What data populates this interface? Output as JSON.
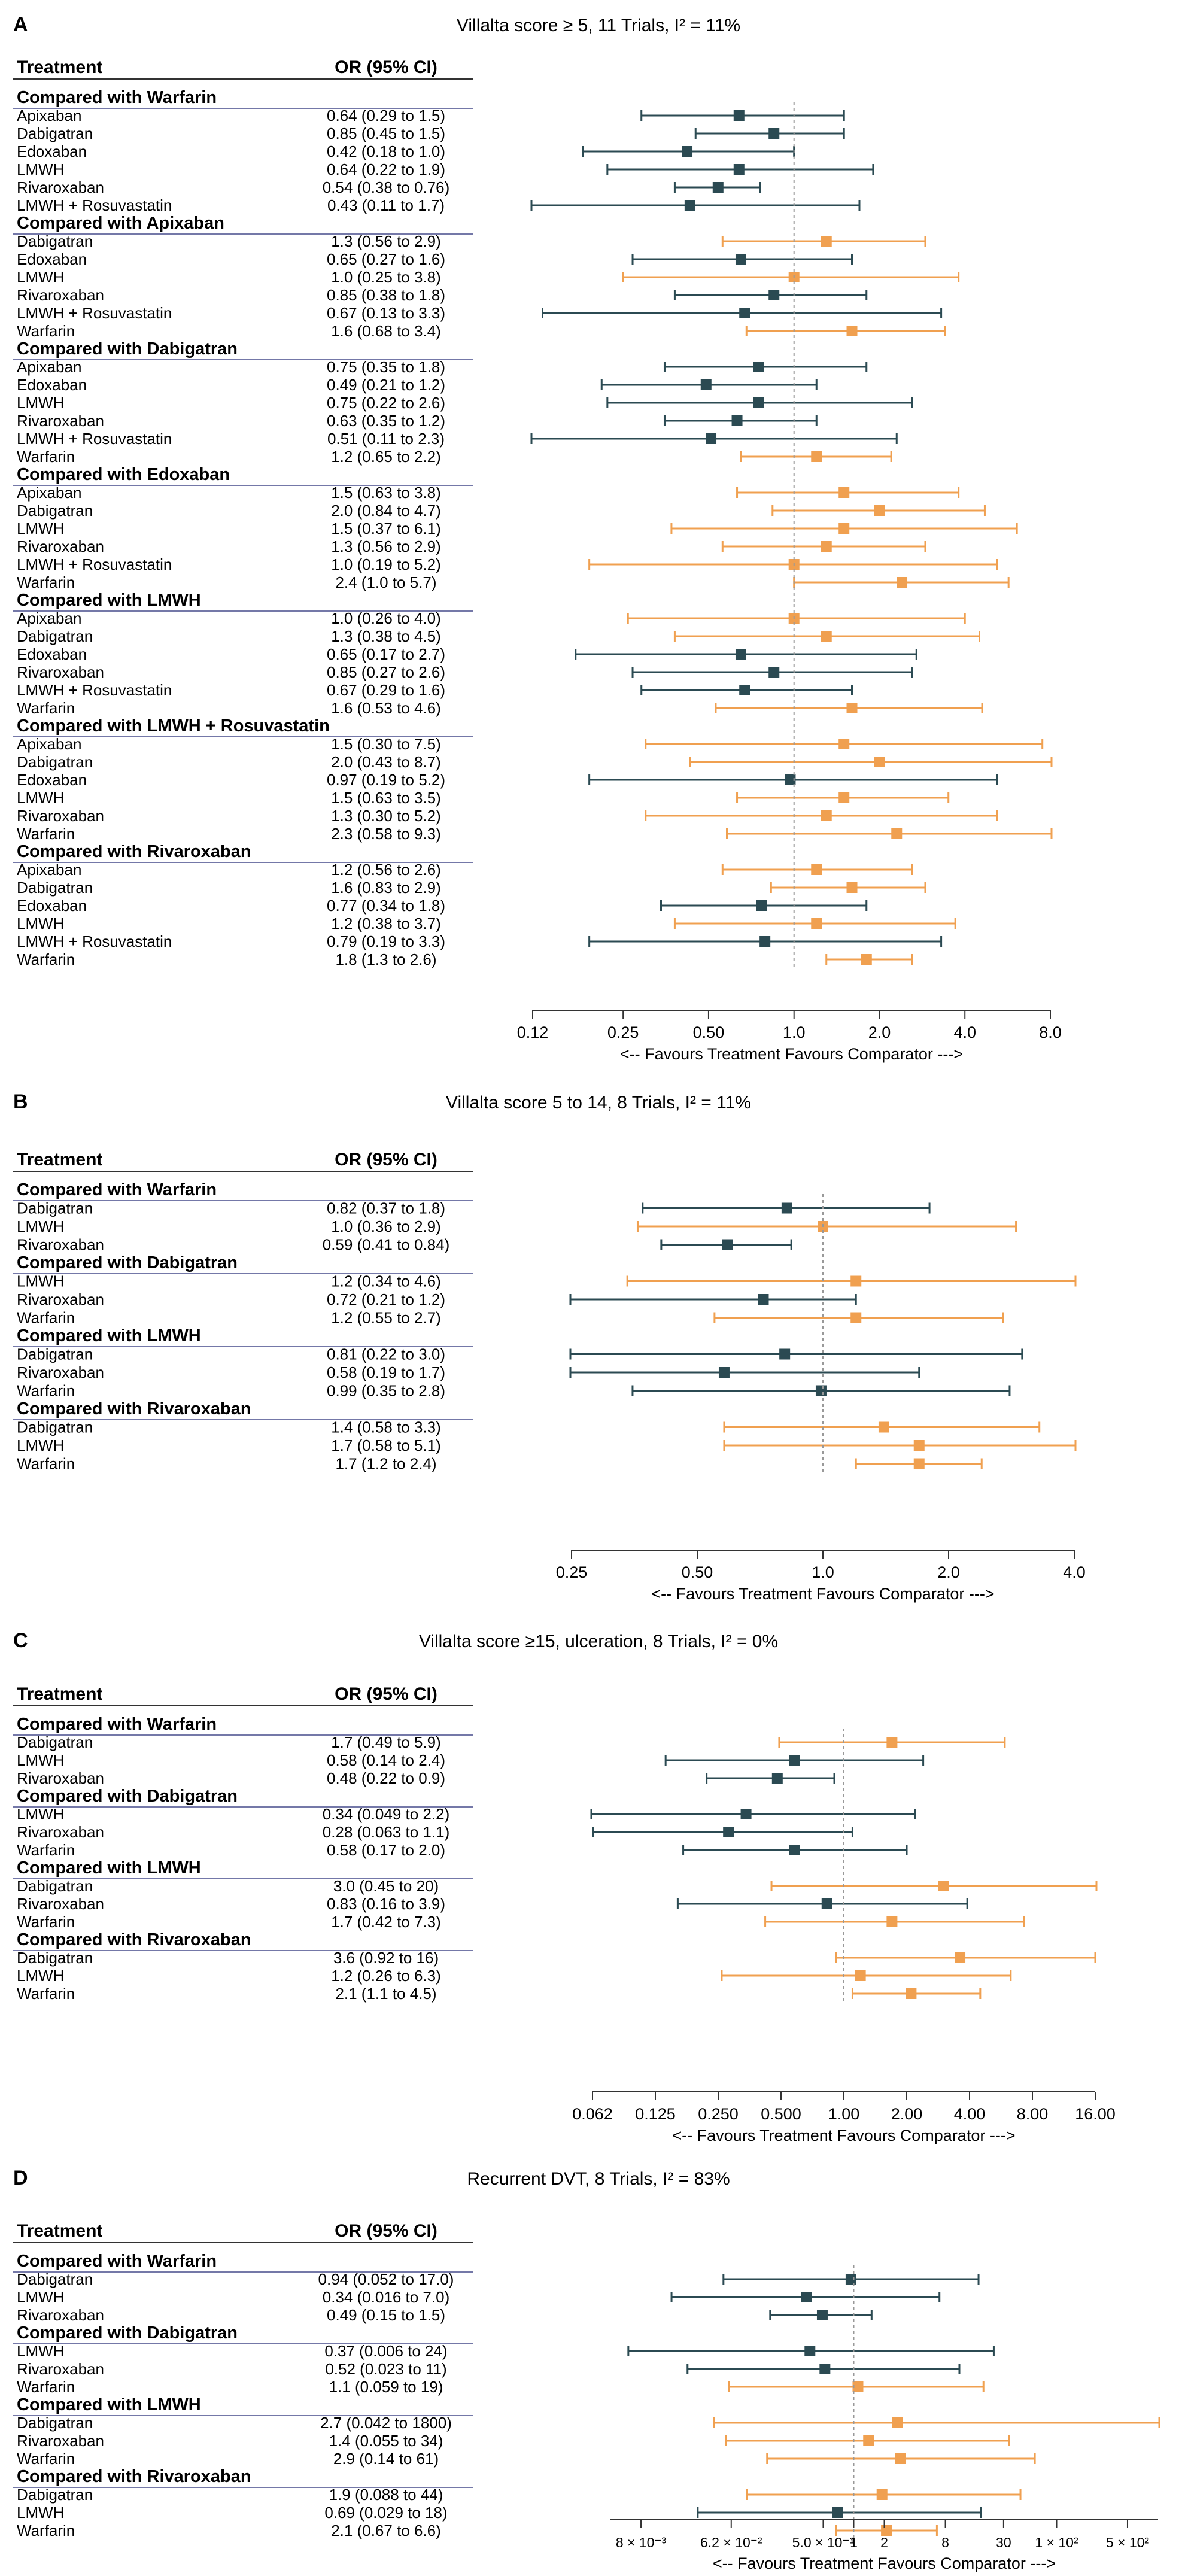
{
  "colors": {
    "below_one": "#2b4a52",
    "above_one": "#f0a050",
    "rule": "#7478a8",
    "axis": "#333333",
    "ref_line": "#999999"
  },
  "headers": {
    "treatment": "Treatment",
    "or_ci": "OR (95% CI)"
  },
  "axis_caption": "<-- Favours  Treatment  Favours Comparator --->",
  "chart_data": [
    {
      "type": "forest",
      "panel_label": "A",
      "title": "Villalta score ≥ 5, 11 Trials, I² = 11%",
      "x_scale": "log2",
      "xlim": [
        0.12,
        8.0
      ],
      "ticks": [
        0.12,
        0.25,
        0.5,
        1.0,
        2.0,
        4.0,
        8.0
      ],
      "tick_labels": [
        "0.12",
        "0.25",
        "0.50",
        "1.0",
        "2.0",
        "4.0",
        "8.0"
      ],
      "groups": [
        {
          "title": "Compared with Warfarin",
          "rows": [
            {
              "label": "Apixaban",
              "ci_text": "0.64 (0.29 to 1.5)",
              "or": 0.64,
              "lo": 0.29,
              "hi": 1.5
            },
            {
              "label": "Dabigatran",
              "ci_text": "0.85 (0.45 to 1.5)",
              "or": 0.85,
              "lo": 0.45,
              "hi": 1.5
            },
            {
              "label": "Edoxaban",
              "ci_text": "0.42 (0.18 to 1.0)",
              "or": 0.42,
              "lo": 0.18,
              "hi": 1.0
            },
            {
              "label": "LMWH",
              "ci_text": "0.64 (0.22 to 1.9)",
              "or": 0.64,
              "lo": 0.22,
              "hi": 1.9
            },
            {
              "label": "Rivaroxaban",
              "ci_text": "0.54 (0.38 to 0.76)",
              "or": 0.54,
              "lo": 0.38,
              "hi": 0.76
            },
            {
              "label": "LMWH + Rosuvastatin",
              "ci_text": "0.43 (0.11 to 1.7)",
              "or": 0.43,
              "lo": 0.11,
              "hi": 1.7
            }
          ]
        },
        {
          "title": "Compared with Apixaban",
          "rows": [
            {
              "label": "Dabigatran",
              "ci_text": "1.3 (0.56 to 2.9)",
              "or": 1.3,
              "lo": 0.56,
              "hi": 2.9
            },
            {
              "label": "Edoxaban",
              "ci_text": "0.65 (0.27 to 1.6)",
              "or": 0.65,
              "lo": 0.27,
              "hi": 1.6
            },
            {
              "label": "LMWH",
              "ci_text": "1.0 (0.25 to 3.8)",
              "or": 1.0,
              "lo": 0.25,
              "hi": 3.8
            },
            {
              "label": "Rivaroxaban",
              "ci_text": "0.85 (0.38 to 1.8)",
              "or": 0.85,
              "lo": 0.38,
              "hi": 1.8
            },
            {
              "label": "LMWH + Rosuvastatin",
              "ci_text": "0.67 (0.13 to 3.3)",
              "or": 0.67,
              "lo": 0.13,
              "hi": 3.3
            },
            {
              "label": "Warfarin",
              "ci_text": "1.6 (0.68 to 3.4)",
              "or": 1.6,
              "lo": 0.68,
              "hi": 3.4
            }
          ]
        },
        {
          "title": "Compared with Dabigatran",
          "rows": [
            {
              "label": "Apixaban",
              "ci_text": "0.75 (0.35 to 1.8)",
              "or": 0.75,
              "lo": 0.35,
              "hi": 1.8
            },
            {
              "label": "Edoxaban",
              "ci_text": "0.49 (0.21 to 1.2)",
              "or": 0.49,
              "lo": 0.21,
              "hi": 1.2
            },
            {
              "label": "LMWH",
              "ci_text": "0.75 (0.22 to 2.6)",
              "or": 0.75,
              "lo": 0.22,
              "hi": 2.6
            },
            {
              "label": "Rivaroxaban",
              "ci_text": "0.63 (0.35 to 1.2)",
              "or": 0.63,
              "lo": 0.35,
              "hi": 1.2
            },
            {
              "label": "LMWH + Rosuvastatin",
              "ci_text": "0.51 (0.11 to 2.3)",
              "or": 0.51,
              "lo": 0.11,
              "hi": 2.3
            },
            {
              "label": "Warfarin",
              "ci_text": "1.2 (0.65 to 2.2)",
              "or": 1.2,
              "lo": 0.65,
              "hi": 2.2
            }
          ]
        },
        {
          "title": "Compared with Edoxaban",
          "rows": [
            {
              "label": "Apixaban",
              "ci_text": "1.5 (0.63 to 3.8)",
              "or": 1.5,
              "lo": 0.63,
              "hi": 3.8
            },
            {
              "label": "Dabigatran",
              "ci_text": "2.0 (0.84 to 4.7)",
              "or": 2.0,
              "lo": 0.84,
              "hi": 4.7
            },
            {
              "label": "LMWH",
              "ci_text": "1.5 (0.37 to 6.1)",
              "or": 1.5,
              "lo": 0.37,
              "hi": 6.1
            },
            {
              "label": "Rivaroxaban",
              "ci_text": "1.3 (0.56 to 2.9)",
              "or": 1.3,
              "lo": 0.56,
              "hi": 2.9
            },
            {
              "label": "LMWH + Rosuvastatin",
              "ci_text": "1.0 (0.19 to 5.2)",
              "or": 1.0,
              "lo": 0.19,
              "hi": 5.2
            },
            {
              "label": "Warfarin",
              "ci_text": "2.4 (1.0 to 5.7)",
              "or": 2.4,
              "lo": 1.0,
              "hi": 5.7
            }
          ]
        },
        {
          "title": "Compared with LMWH",
          "rows": [
            {
              "label": "Apixaban",
              "ci_text": "1.0 (0.26 to 4.0)",
              "or": 1.0,
              "lo": 0.26,
              "hi": 4.0
            },
            {
              "label": "Dabigatran",
              "ci_text": "1.3 (0.38 to 4.5)",
              "or": 1.3,
              "lo": 0.38,
              "hi": 4.5
            },
            {
              "label": "Edoxaban",
              "ci_text": "0.65 (0.17 to 2.7)",
              "or": 0.65,
              "lo": 0.17,
              "hi": 2.7
            },
            {
              "label": "Rivaroxaban",
              "ci_text": "0.85 (0.27 to 2.6)",
              "or": 0.85,
              "lo": 0.27,
              "hi": 2.6
            },
            {
              "label": "LMWH + Rosuvastatin",
              "ci_text": "0.67 (0.29 to 1.6)",
              "or": 0.67,
              "lo": 0.29,
              "hi": 1.6
            },
            {
              "label": "Warfarin",
              "ci_text": "1.6 (0.53 to 4.6)",
              "or": 1.6,
              "lo": 0.53,
              "hi": 4.6
            }
          ]
        },
        {
          "title": "Compared with LMWH + Rosuvastatin",
          "rows": [
            {
              "label": "Apixaban",
              "ci_text": "1.5 (0.30 to 7.5)",
              "or": 1.5,
              "lo": 0.3,
              "hi": 7.5
            },
            {
              "label": "Dabigatran",
              "ci_text": "2.0 (0.43 to 8.7)",
              "or": 2.0,
              "lo": 0.43,
              "hi": 8.7
            },
            {
              "label": "Edoxaban",
              "ci_text": "0.97 (0.19 to 5.2)",
              "or": 0.97,
              "lo": 0.19,
              "hi": 5.2
            },
            {
              "label": "LMWH",
              "ci_text": "1.5 (0.63 to 3.5)",
              "or": 1.5,
              "lo": 0.63,
              "hi": 3.5
            },
            {
              "label": "Rivaroxaban",
              "ci_text": "1.3 (0.30 to 5.2)",
              "or": 1.3,
              "lo": 0.3,
              "hi": 5.2
            },
            {
              "label": "Warfarin",
              "ci_text": "2.3 (0.58 to 9.3)",
              "or": 2.3,
              "lo": 0.58,
              "hi": 9.3
            }
          ]
        },
        {
          "title": "Compared with Rivaroxaban",
          "rows": [
            {
              "label": "Apixaban",
              "ci_text": "1.2 (0.56 to 2.6)",
              "or": 1.2,
              "lo": 0.56,
              "hi": 2.6
            },
            {
              "label": "Dabigatran",
              "ci_text": "1.6 (0.83 to 2.9)",
              "or": 1.6,
              "lo": 0.83,
              "hi": 2.9
            },
            {
              "label": "Edoxaban",
              "ci_text": "0.77 (0.34 to 1.8)",
              "or": 0.77,
              "lo": 0.34,
              "hi": 1.8
            },
            {
              "label": "LMWH",
              "ci_text": "1.2 (0.38 to 3.7)",
              "or": 1.2,
              "lo": 0.38,
              "hi": 3.7
            },
            {
              "label": "LMWH + Rosuvastatin",
              "ci_text": "0.79 (0.19 to 3.3)",
              "or": 0.79,
              "lo": 0.19,
              "hi": 3.3
            },
            {
              "label": "Warfarin",
              "ci_text": "1.8 (1.3 to 2.6)",
              "or": 1.8,
              "lo": 1.3,
              "hi": 2.6
            }
          ]
        }
      ]
    },
    {
      "type": "forest",
      "panel_label": "B",
      "title": "Villalta score 5 to 14, 8 Trials, I² = 11%",
      "x_scale": "log2",
      "xlim": [
        0.25,
        4.0
      ],
      "ticks": [
        0.25,
        0.5,
        1.0,
        2.0,
        4.0
      ],
      "tick_labels": [
        "0.25",
        "0.50",
        "1.0",
        "2.0",
        "4.0"
      ],
      "groups": [
        {
          "title": "Compared with Warfarin",
          "rows": [
            {
              "label": "Dabigatran",
              "ci_text": "0.82 (0.37 to 1.8)",
              "or": 0.82,
              "lo": 0.37,
              "hi": 1.8
            },
            {
              "label": "LMWH",
              "ci_text": "1.0 (0.36 to 2.9)",
              "or": 1.0,
              "lo": 0.36,
              "hi": 2.9
            },
            {
              "label": "Rivaroxaban",
              "ci_text": "0.59 (0.41 to 0.84)",
              "or": 0.59,
              "lo": 0.41,
              "hi": 0.84
            }
          ]
        },
        {
          "title": "Compared with Dabigatran",
          "rows": [
            {
              "label": "LMWH",
              "ci_text": "1.2 (0.34 to 4.6)",
              "or": 1.2,
              "lo": 0.34,
              "hi": 4.6
            },
            {
              "label": "Rivaroxaban",
              "ci_text": "0.72 (0.21 to 1.2)",
              "or": 0.72,
              "lo": 0.21,
              "hi": 1.2
            },
            {
              "label": "Warfarin",
              "ci_text": "1.2 (0.55 to 2.7)",
              "or": 1.2,
              "lo": 0.55,
              "hi": 2.7
            }
          ]
        },
        {
          "title": "Compared with LMWH",
          "rows": [
            {
              "label": "Dabigatran",
              "ci_text": "0.81 (0.22 to 3.0)",
              "or": 0.81,
              "lo": 0.22,
              "hi": 3.0
            },
            {
              "label": "Rivaroxaban",
              "ci_text": "0.58 (0.19 to 1.7)",
              "or": 0.58,
              "lo": 0.19,
              "hi": 1.7
            },
            {
              "label": "Warfarin",
              "ci_text": "0.99 (0.35 to 2.8)",
              "or": 0.99,
              "lo": 0.35,
              "hi": 2.8
            }
          ]
        },
        {
          "title": "Compared with Rivaroxaban",
          "rows": [
            {
              "label": "Dabigatran",
              "ci_text": "1.4 (0.58 to 3.3)",
              "or": 1.4,
              "lo": 0.58,
              "hi": 3.3
            },
            {
              "label": "LMWH",
              "ci_text": "1.7 (0.58 to 5.1)",
              "or": 1.7,
              "lo": 0.58,
              "hi": 5.1
            },
            {
              "label": "Warfarin",
              "ci_text": "1.7 (1.2 to 2.4)",
              "or": 1.7,
              "lo": 1.2,
              "hi": 2.4
            }
          ]
        }
      ]
    },
    {
      "type": "forest",
      "panel_label": "C",
      "title": "Villalta score ≥15, ulceration, 8 Trials, I² = 0%",
      "x_scale": "log2",
      "xlim": [
        0.062,
        16.0
      ],
      "ticks": [
        0.0625,
        0.125,
        0.25,
        0.5,
        1.0,
        2.0,
        4.0,
        8.0,
        16.0
      ],
      "tick_labels": [
        "0.062",
        "0.125",
        "0.250",
        "0.500",
        "1.00",
        "2.00",
        "4.00",
        "8.00",
        "16.00"
      ],
      "groups": [
        {
          "title": "Compared with Warfarin",
          "rows": [
            {
              "label": "Dabigatran",
              "ci_text": "1.7 (0.49 to 5.9)",
              "or": 1.7,
              "lo": 0.49,
              "hi": 5.9
            },
            {
              "label": "LMWH",
              "ci_text": "0.58 (0.14 to 2.4)",
              "or": 0.58,
              "lo": 0.14,
              "hi": 2.4
            },
            {
              "label": "Rivaroxaban",
              "ci_text": "0.48 (0.22 to 0.9)",
              "or": 0.48,
              "lo": 0.22,
              "hi": 0.9
            }
          ]
        },
        {
          "title": "Compared with Dabigatran",
          "rows": [
            {
              "label": "LMWH",
              "ci_text": "0.34 (0.049 to 2.2)",
              "or": 0.34,
              "lo": 0.049,
              "hi": 2.2
            },
            {
              "label": "Rivaroxaban",
              "ci_text": "0.28 (0.063 to 1.1)",
              "or": 0.28,
              "lo": 0.063,
              "hi": 1.1
            },
            {
              "label": "Warfarin",
              "ci_text": "0.58 (0.17 to 2.0)",
              "or": 0.58,
              "lo": 0.17,
              "hi": 2.0
            }
          ]
        },
        {
          "title": "Compared with LMWH",
          "rows": [
            {
              "label": "Dabigatran",
              "ci_text": "3.0 (0.45 to 20)",
              "or": 3.0,
              "lo": 0.45,
              "hi": 20
            },
            {
              "label": "Rivaroxaban",
              "ci_text": "0.83 (0.16 to 3.9)",
              "or": 0.83,
              "lo": 0.16,
              "hi": 3.9
            },
            {
              "label": "Warfarin",
              "ci_text": "1.7 (0.42 to 7.3)",
              "or": 1.7,
              "lo": 0.42,
              "hi": 7.3
            }
          ]
        },
        {
          "title": "Compared with Rivaroxaban",
          "rows": [
            {
              "label": "Dabigatran",
              "ci_text": "3.6 (0.92 to 16)",
              "or": 3.6,
              "lo": 0.92,
              "hi": 16
            },
            {
              "label": "LMWH",
              "ci_text": "1.2 (0.26 to 6.3)",
              "or": 1.2,
              "lo": 0.26,
              "hi": 6.3
            },
            {
              "label": "Warfarin",
              "ci_text": "2.1 (1.1 to 4.5)",
              "or": 2.1,
              "lo": 1.1,
              "hi": 4.5
            }
          ]
        }
      ]
    },
    {
      "type": "forest",
      "panel_label": "D",
      "title": "Recurrent DVT, 8 Trials, I² = 83%",
      "x_scale": "log",
      "xlim": [
        0.004,
        1000
      ],
      "ticks": [
        0.008,
        0.062,
        0.5,
        1.0,
        2.0,
        8.0,
        30,
        100,
        500
      ],
      "tick_labels": [
        "8 × 10⁻³",
        "6.2 × 10⁻²",
        "5.0 × 10⁻¹",
        "1",
        "2",
        "8",
        "30",
        "1 × 10²",
        "5 × 10²"
      ],
      "groups": [
        {
          "title": "Compared with Warfarin",
          "rows": [
            {
              "label": "Dabigatran",
              "ci_text": "0.94 (0.052 to 17.0)",
              "or": 0.94,
              "lo": 0.052,
              "hi": 17.0
            },
            {
              "label": "LMWH",
              "ci_text": "0.34 (0.016 to 7.0)",
              "or": 0.34,
              "lo": 0.016,
              "hi": 7.0
            },
            {
              "label": "Rivaroxaban",
              "ci_text": "0.49 (0.15 to 1.5)",
              "or": 0.49,
              "lo": 0.15,
              "hi": 1.5
            }
          ]
        },
        {
          "title": "Compared with Dabigatran",
          "rows": [
            {
              "label": "LMWH",
              "ci_text": "0.37 (0.006 to 24)",
              "or": 0.37,
              "lo": 0.006,
              "hi": 24
            },
            {
              "label": "Rivaroxaban",
              "ci_text": "0.52 (0.023 to 11)",
              "or": 0.52,
              "lo": 0.023,
              "hi": 11
            },
            {
              "label": "Warfarin",
              "ci_text": "1.1 (0.059 to 19)",
              "or": 1.1,
              "lo": 0.059,
              "hi": 19
            }
          ]
        },
        {
          "title": "Compared with LMWH",
          "rows": [
            {
              "label": "Dabigatran",
              "ci_text": "2.7 (0.042 to 1800)",
              "or": 2.7,
              "lo": 0.042,
              "hi": 1800
            },
            {
              "label": "Rivaroxaban",
              "ci_text": "1.4 (0.055 to 34)",
              "or": 1.4,
              "lo": 0.055,
              "hi": 34
            },
            {
              "label": "Warfarin",
              "ci_text": "2.9 (0.14 to 61)",
              "or": 2.9,
              "lo": 0.14,
              "hi": 61
            }
          ]
        },
        {
          "title": "Compared with Rivaroxaban",
          "rows": [
            {
              "label": "Dabigatran",
              "ci_text": "1.9 (0.088 to 44)",
              "or": 1.9,
              "lo": 0.088,
              "hi": 44
            },
            {
              "label": "LMWH",
              "ci_text": "0.69 (0.029 to 18)",
              "or": 0.69,
              "lo": 0.029,
              "hi": 18
            },
            {
              "label": "Warfarin",
              "ci_text": "2.1 (0.67 to 6.6)",
              "or": 2.1,
              "lo": 0.67,
              "hi": 6.6
            }
          ]
        }
      ]
    }
  ]
}
